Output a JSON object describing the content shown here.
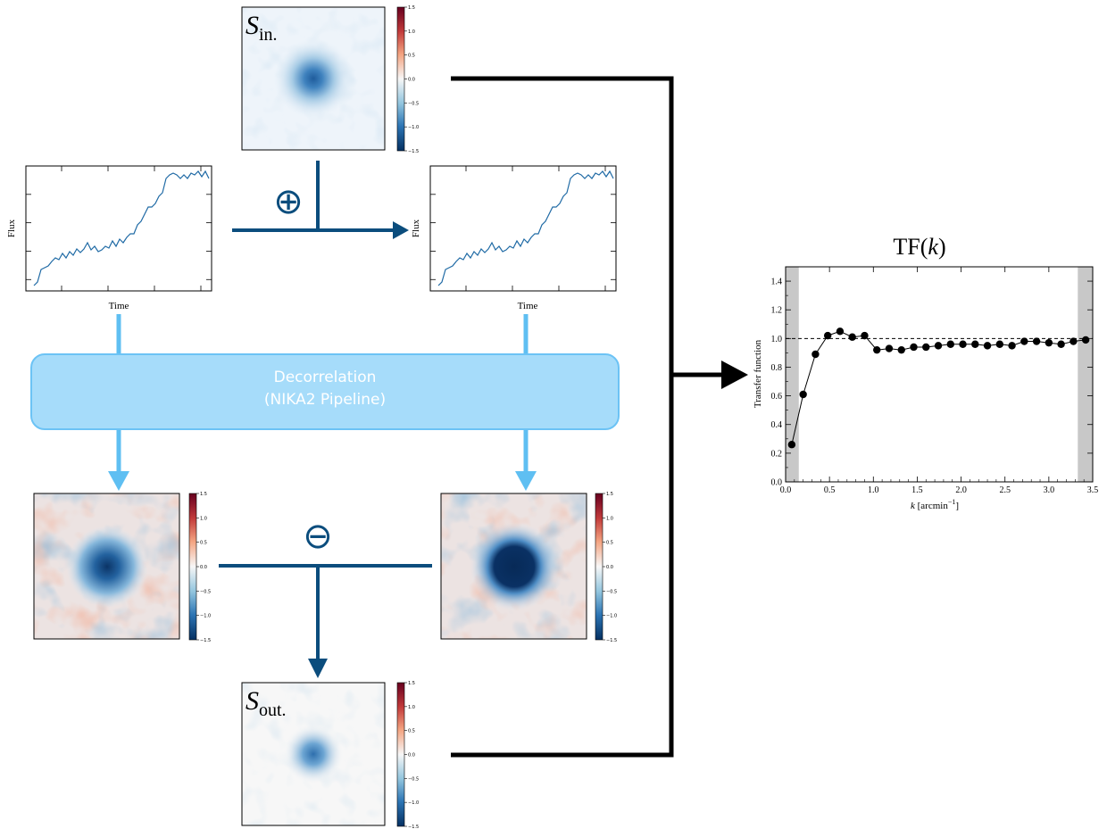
{
  "maps": {
    "input": {
      "symbol": "S",
      "subscript": "in."
    },
    "output": {
      "symbol": "S",
      "subscript": "out."
    },
    "colorbar_ticks": [
      "1.5",
      "1.0",
      "0.5",
      "0.0",
      "−0.5",
      "−1.0",
      "−1.5"
    ]
  },
  "timelines": {
    "left": {
      "ylabel": "Flux",
      "xlabel": "Time"
    },
    "right": {
      "ylabel": "Flux",
      "xlabel": "Time"
    }
  },
  "operators": {
    "add": "⊕",
    "subtract": "⊖"
  },
  "decorrelation": {
    "line1": "Decorrelation",
    "line2": "(NIKA2 Pipeline)"
  },
  "transfer_plot": {
    "title_prefix": "TF(",
    "title_var": "k",
    "title_suffix": ")",
    "ylabel": "Transfer function",
    "xlabel_var": "k",
    "xlabel_unit": " [arcmin",
    "xlabel_exp": "−1",
    "xlabel_close": "]"
  },
  "chart_data": {
    "type": "line",
    "x": [
      0.07,
      0.2,
      0.34,
      0.48,
      0.62,
      0.76,
      0.9,
      1.04,
      1.18,
      1.32,
      1.46,
      1.6,
      1.74,
      1.88,
      2.02,
      2.16,
      2.3,
      2.44,
      2.58,
      2.72,
      2.86,
      3.0,
      3.14,
      3.28,
      3.42
    ],
    "y": [
      0.26,
      0.61,
      0.89,
      1.02,
      1.05,
      1.01,
      1.02,
      0.92,
      0.93,
      0.92,
      0.94,
      0.94,
      0.95,
      0.96,
      0.96,
      0.96,
      0.95,
      0.96,
      0.95,
      0.98,
      0.98,
      0.97,
      0.96,
      0.98,
      0.99
    ],
    "reference_line": 1.0,
    "xlim": [
      0,
      3.5
    ],
    "ylim": [
      0,
      1.5
    ],
    "xticks": [
      "0.0",
      "0.5",
      "1.0",
      "1.5",
      "2.0",
      "2.5",
      "3.0",
      "3.5"
    ],
    "yticks": [
      "0.0",
      "0.2",
      "0.4",
      "0.6",
      "0.8",
      "1.0",
      "1.2",
      "1.4"
    ],
    "shaded_regions": [
      [
        0,
        0.15
      ],
      [
        3.33,
        3.5
      ]
    ]
  }
}
